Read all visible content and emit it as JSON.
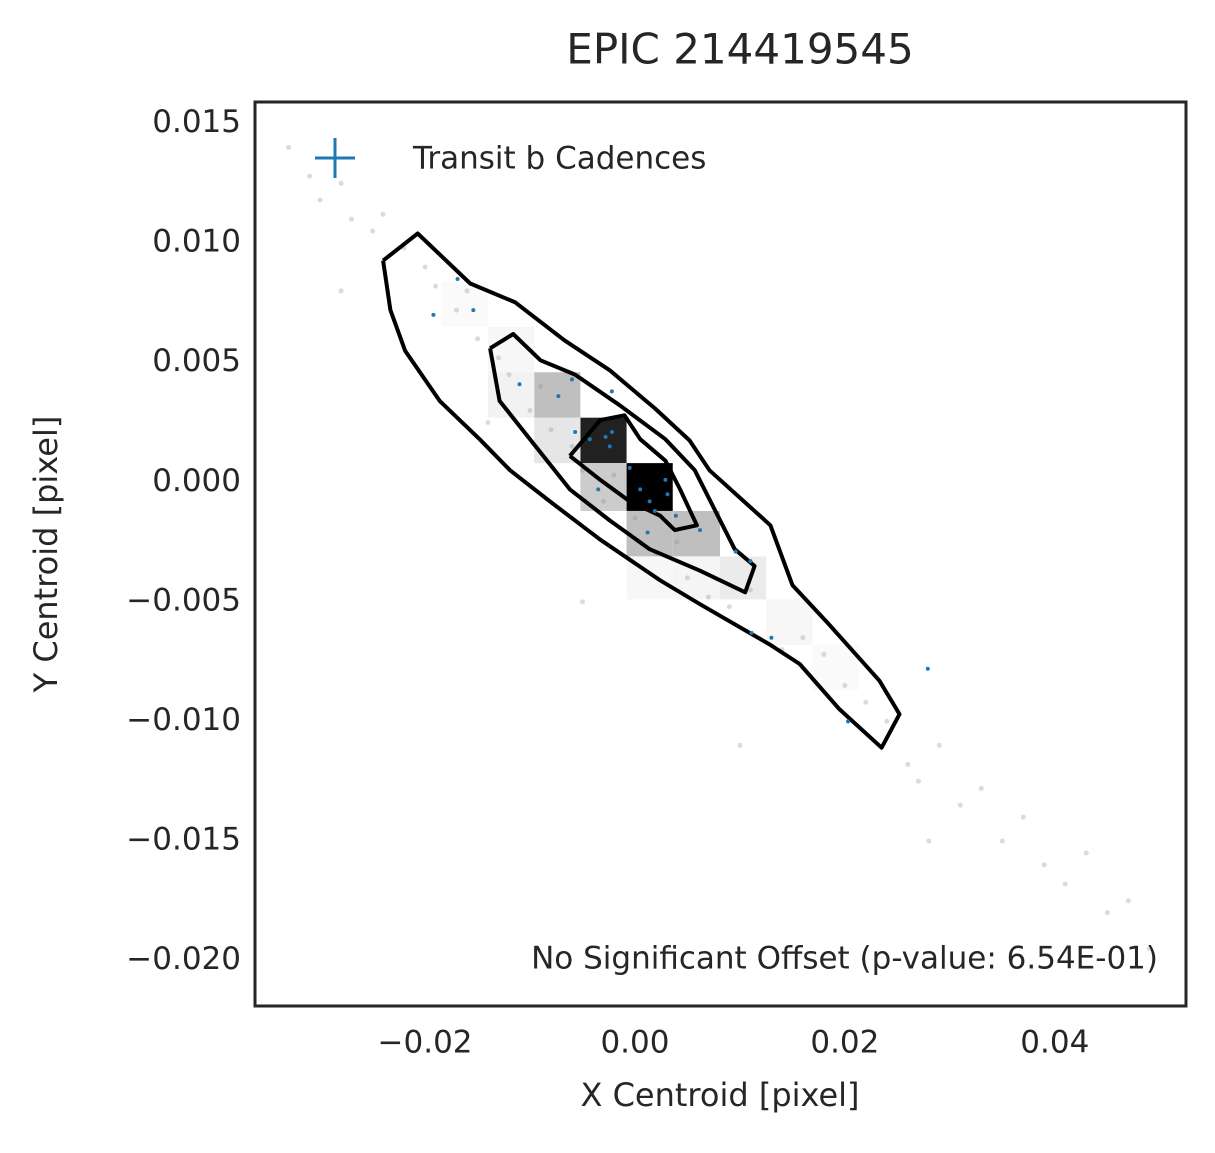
{
  "chart_data": {
    "type": "scatter",
    "title": "EPIC 214419545",
    "xlabel": "X Centroid [pixel]",
    "ylabel": "Y Centroid [pixel]",
    "annotation": "No Significant Offset (p-value: 6.54E-01)",
    "xlim": [
      -0.0362,
      0.0525
    ],
    "ylim": [
      -0.0219,
      0.0159
    ],
    "xticks": [
      {
        "value": -0.02,
        "label": "−0.02"
      },
      {
        "value": 0,
        "label": "0.00"
      },
      0.02,
      0.04
    ],
    "yticks": [
      0.015,
      {
        "value": 0.01,
        "label": "0.010"
      },
      0.005,
      {
        "value": 0,
        "label": "0.000"
      },
      {
        "value": -0.005,
        "label": "−0.005"
      },
      {
        "value": -0.01,
        "label": "−0.010"
      },
      {
        "value": -0.015,
        "label": "−0.015"
      },
      {
        "value": -0.02,
        "label": "−0.020"
      }
    ],
    "grid": false,
    "legend": "upper left",
    "hist_cells": [
      {
        "x": [
          -0.0008,
          0.0036
        ],
        "y": [
          -0.0012,
          0.0008
        ],
        "value": 1.0
      },
      {
        "x": [
          -0.0052,
          -0.0008
        ],
        "y": [
          0.0008,
          0.0027
        ],
        "value": 0.87
      },
      {
        "x": [
          -0.0096,
          -0.0052
        ],
        "y": [
          0.0027,
          0.0046
        ],
        "value": 0.25
      },
      {
        "x": [
          -0.0096,
          -0.0052
        ],
        "y": [
          0.0008,
          0.0027
        ],
        "value": 0.1
      },
      {
        "x": [
          -0.0052,
          -0.0008
        ],
        "y": [
          -0.0012,
          0.0008
        ],
        "value": 0.2
      },
      {
        "x": [
          -0.0008,
          0.0036
        ],
        "y": [
          -0.0031,
          -0.0012
        ],
        "value": 0.25
      },
      {
        "x": [
          0.0036,
          0.0081
        ],
        "y": [
          -0.0031,
          -0.0012
        ],
        "value": 0.25
      },
      {
        "x": [
          0.0081,
          0.0125
        ],
        "y": [
          -0.0049,
          -0.0031
        ],
        "value": 0.08
      },
      {
        "x": [
          -0.014,
          -0.0096
        ],
        "y": [
          0.0027,
          0.0046
        ],
        "value": 0.05
      },
      {
        "x": [
          0.0036,
          0.0081
        ],
        "y": [
          -0.0049,
          -0.0031
        ],
        "value": 0.04
      },
      {
        "x": [
          -0.014,
          -0.0096
        ],
        "y": [
          0.0046,
          0.0065
        ],
        "value": 0.03
      },
      {
        "x": [
          0.0125,
          0.0169
        ],
        "y": [
          -0.0068,
          -0.0049
        ],
        "value": 0.03
      },
      {
        "x": [
          -0.0008,
          0.0036
        ],
        "y": [
          -0.0049,
          -0.0031
        ],
        "value": 0.03
      },
      {
        "x": [
          -0.0184,
          -0.014
        ],
        "y": [
          0.0065,
          0.0084
        ],
        "value": 0.02
      },
      {
        "x": [
          0.0169,
          0.0213
        ],
        "y": [
          -0.0087,
          -0.0068
        ],
        "value": 0.02
      }
    ],
    "contours": [
      {
        "color": "#000000",
        "x": [
          -0.024,
          -0.0207,
          -0.0157,
          -0.0114,
          -0.0067,
          -0.0024,
          0.0019,
          0.0052,
          0.0071,
          0.0129,
          0.015,
          0.0184,
          0.0233,
          0.0252,
          0.0235,
          0.0195,
          0.0157,
          0.0129,
          0.0062,
          0.0024,
          -0.0033,
          -0.0081,
          -0.0119,
          -0.0148,
          -0.0186,
          -0.0219,
          -0.0233,
          -0.024
        ],
        "y": [
          0.00927,
          0.0104,
          0.00831,
          0.00752,
          0.00593,
          0.00468,
          0.00309,
          0.00175,
          0.0005,
          -0.0018,
          -0.0043,
          -0.0059,
          -0.0083,
          -0.0097,
          -0.0111,
          -0.0095,
          -0.0076,
          -0.0068,
          -0.0051,
          -0.0041,
          -0.0024,
          -0.0008,
          0.0005,
          0.0018,
          0.0034,
          0.0055,
          0.0072,
          0.00927
        ]
      },
      {
        "color": "#000000",
        "x": [
          -0.0138,
          -0.0116,
          -0.009,
          -0.0057,
          -0.0014,
          0.0029,
          0.0057,
          0.0095,
          0.0114,
          0.0105,
          0.0062,
          0.0014,
          -0.0024,
          -0.0062,
          -0.01,
          -0.0129,
          -0.0138
        ],
        "y": [
          0.0056,
          0.0062,
          0.0051,
          0.0045,
          0.0032,
          0.0018,
          0.0005,
          -0.0028,
          -0.0035,
          -0.0046,
          -0.0037,
          -0.0028,
          -0.0016,
          -0.0003,
          0.0018,
          0.0034,
          0.0056
        ]
      },
      {
        "color": "#000000",
        "x": [
          -0.0062,
          -0.0033,
          -0.001,
          0.0005,
          0.0029,
          0.0043,
          0.0059,
          0.0038,
          0.0024,
          -0.0005,
          -0.0033,
          -0.0062
        ],
        "y": [
          0.0011,
          0.0026,
          0.0028,
          0.0018,
          0.0009,
          -0.0003,
          -0.0018,
          -0.002,
          -0.0014,
          -0.0008,
          0.0001,
          0.0011
        ]
      }
    ],
    "series": [
      {
        "color": "#888888",
        "x": [
          -0.033,
          -0.031,
          -0.03,
          -0.028,
          -0.027,
          -0.025,
          -0.024,
          -0.022,
          -0.02,
          -0.019,
          -0.017,
          -0.016,
          -0.015,
          -0.013,
          -0.012,
          -0.01,
          -0.009,
          -0.008,
          -0.006,
          -0.005,
          -0.003,
          -0.002,
          0.0,
          0.002,
          0.004,
          0.005,
          0.007,
          0.009,
          0.011,
          0.014,
          0.016,
          0.018,
          0.02,
          0.022,
          0.024,
          0.026,
          0.027,
          0.029,
          0.031,
          0.033,
          0.035,
          0.037,
          0.039,
          0.041,
          0.043,
          0.045,
          0.047,
          0.049,
          -0.028,
          0.01,
          -0.014,
          0.028,
          -0.005
        ],
        "y": [
          0.014,
          0.0128,
          0.0118,
          0.0125,
          0.011,
          0.0105,
          0.0112,
          0.0098,
          0.009,
          0.0082,
          0.0072,
          0.008,
          0.006,
          0.0052,
          0.0045,
          0.003,
          0.004,
          0.0022,
          0.0015,
          0.0005,
          -0.0008,
          0.0003,
          -0.0015,
          -0.003,
          -0.0025,
          -0.004,
          -0.0048,
          -0.0052,
          -0.0045,
          -0.007,
          -0.0065,
          -0.0072,
          -0.0085,
          -0.0092,
          -0.01,
          -0.0118,
          -0.0125,
          -0.011,
          -0.0135,
          -0.0128,
          -0.015,
          -0.014,
          -0.016,
          -0.0168,
          -0.0155,
          -0.018,
          -0.0175,
          -0.0195,
          0.008,
          -0.011,
          0.0025,
          -0.015,
          -0.005
        ]
      },
      {
        "name": "Transit b Cadences",
        "color": "#1f77b4",
        "x": [
          -0.0192,
          -0.0169,
          -0.0154,
          -0.0073,
          -0.006,
          -0.011,
          -0.0022,
          -0.0057,
          -0.0043,
          -0.0028,
          -0.0024,
          -0.0035,
          -0.0005,
          0.0005,
          0.0014,
          0.0029,
          0.0031,
          0.0019,
          0.0012,
          0.0039,
          0.0062,
          0.0096,
          0.011,
          0.0111,
          0.013,
          0.0279,
          0.0203,
          -0.0022
        ],
        "y": [
          0.007,
          0.0085,
          0.0072,
          0.0036,
          0.0043,
          0.0041,
          0.0038,
          0.0021,
          0.0018,
          0.0019,
          0.0015,
          -0.0003,
          0.0006,
          -0.0003,
          -0.0008,
          0.0001,
          -0.0005,
          -0.0012,
          -0.0021,
          -0.0014,
          -0.002,
          -0.0029,
          -0.0033,
          -0.0063,
          -0.0065,
          -0.0078,
          -0.01,
          0.0021
        ]
      }
    ]
  }
}
